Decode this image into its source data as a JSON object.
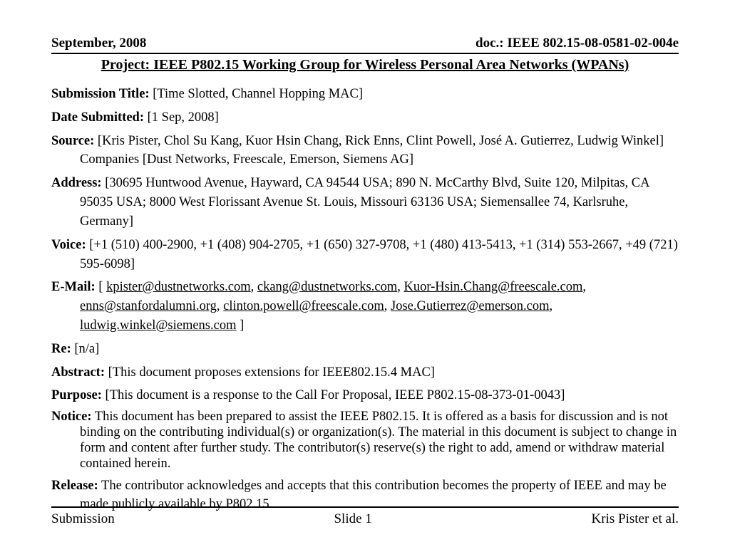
{
  "header": {
    "date": "September, 2008",
    "doc": "doc.: IEEE 802.15-08-0581-02-004e"
  },
  "title": "Project: IEEE P802.15 Working Group for Wireless Personal Area Networks (WPANs)",
  "fields": {
    "submission_title": {
      "label": "Submission Title:",
      "value": " [Time Slotted, Channel Hopping MAC]"
    },
    "date_submitted": {
      "label": "Date Submitted:",
      "value": " [1 Sep, 2008]"
    },
    "source": {
      "label": "Source:",
      "value": " [Kris Pister, Chol Su Kang, Kuor Hsin Chang, Rick Enns, Clint Powell, José A. Gutierrez, Ludwig Winkel] Companies [Dust Networks, Freescale, Emerson, Siemens AG]"
    },
    "address": {
      "label": "Address:",
      "value": "  [30695 Huntwood Avenue, Hayward, CA 94544 USA; 890 N. McCarthy Blvd, Suite 120, Milpitas, CA 95035 USA; 8000 West Florissant Avenue St. Louis, Missouri 63136 USA; Siemensallee 74, Karlsruhe, Germany]"
    },
    "voice": {
      "label": "Voice:",
      "value": " [+1 (510) 400-2900, +1 (408) 904-2705, +1 (650) 327-9708, +1 (480) 413-5413, +1 (314) 553-2667,  +49 (721) 595-6098]"
    },
    "email_label": "E-Mail:",
    "email_prefix": " [ ",
    "emails": [
      "kpister@dustnetworks.com",
      "ckang@dustnetworks.com",
      "Kuor-Hsin.Chang@freescale.com",
      "enns@stanfordalumni.org",
      "clinton.powell@freescale.com",
      "Jose.Gutierrez@emerson.com",
      "ludwig.winkel@siemens.com"
    ],
    "email_suffix": " ]",
    "re": {
      "label": "Re:",
      "value": " [n/a]"
    },
    "abstract": {
      "label": "Abstract:",
      "value": "  [This document proposes extensions for IEEE802.15.4 MAC]"
    },
    "purpose": {
      "label": "Purpose:",
      "value": "   [This document is a response to the Call For Proposal, IEEE P802.15-08-373-01-0043]"
    },
    "notice": {
      "label": "Notice:",
      "value": "      This document has been prepared to assist the IEEE P802.15.  It is offered as a basis for discussion and is not binding on the contributing individual(s) or organization(s). The material in this document is subject to change in form and content after further study. The contributor(s) reserve(s) the right to add, amend or withdraw material contained herein."
    },
    "release": {
      "label": "Release:",
      "value": "    The contributor acknowledges and accepts that this contribution becomes the property of IEEE and may be made publicly available by P802.15."
    }
  },
  "footer": {
    "left": "Submission",
    "center": "Slide 1",
    "right": "Kris Pister et al."
  }
}
